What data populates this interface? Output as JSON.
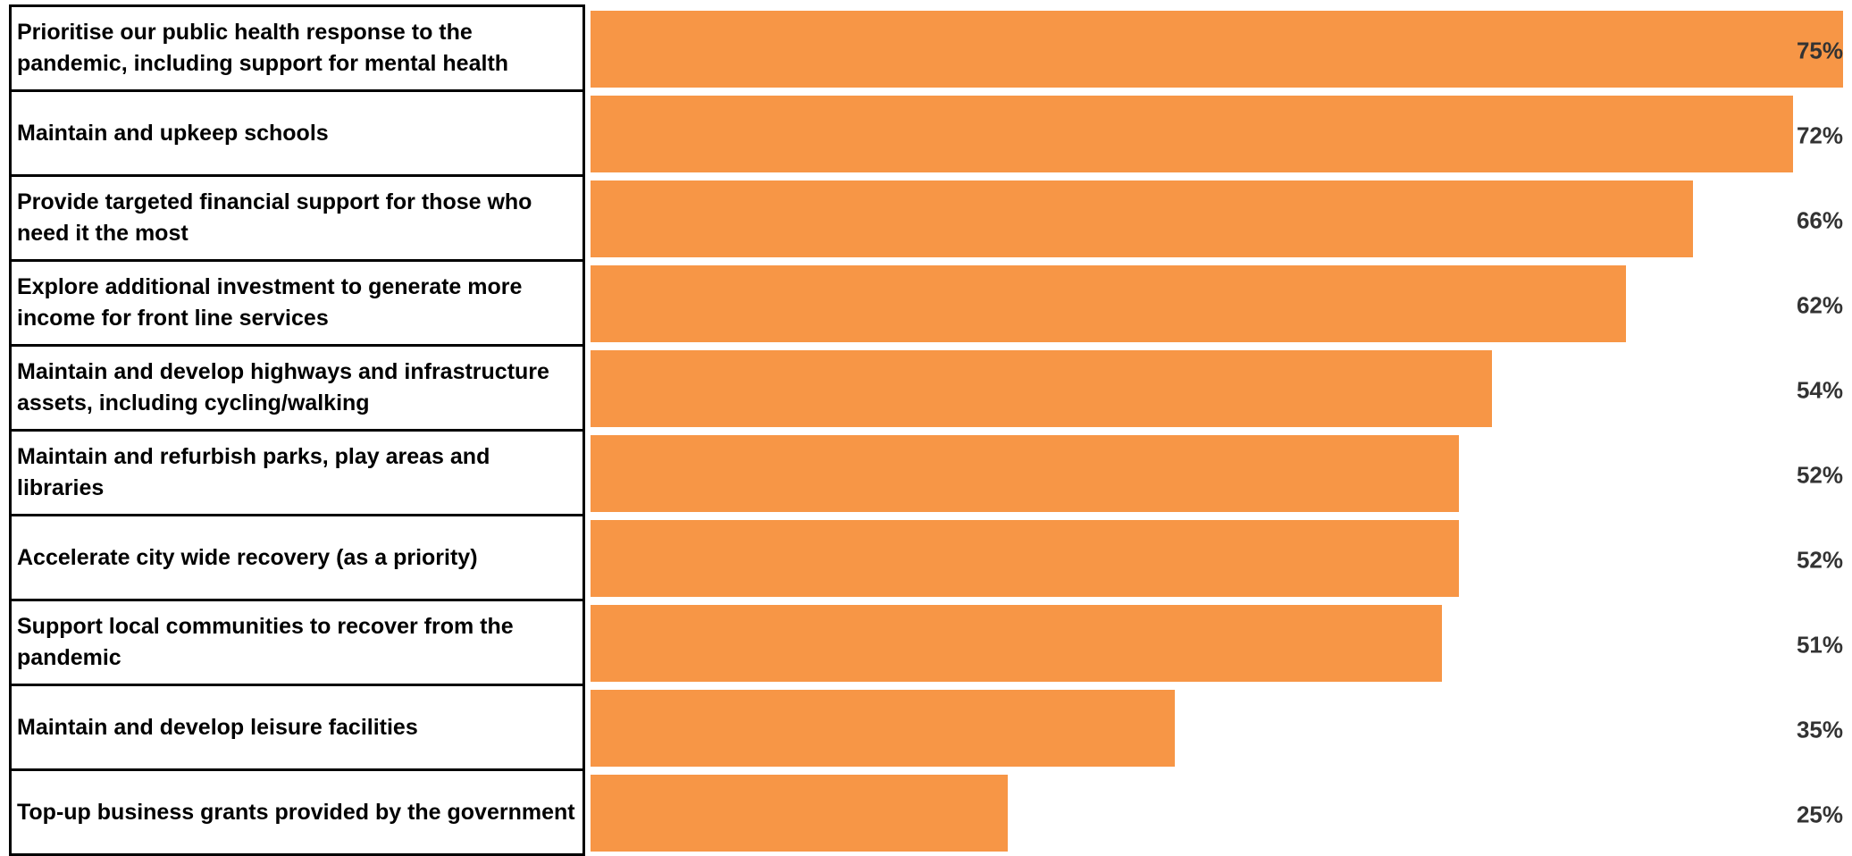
{
  "chart_data": {
    "type": "bar",
    "orientation": "horizontal",
    "categories": [
      "Prioritise our public health response to the pandemic, including support for mental health",
      "Maintain and upkeep schools",
      "Provide targeted financial support for those who need it the most",
      "Explore additional investment to generate more income for front line services",
      "Maintain and develop highways and infrastructure assets, including cycling/walking",
      "Maintain and refurbish parks, play areas and libraries",
      "Accelerate city wide recovery (as a priority)",
      "Support local communities to recover from the pandemic",
      "Maintain and develop leisure facilities",
      "Top-up business grants provided by the government"
    ],
    "values": [
      75,
      72,
      66,
      62,
      54,
      52,
      52,
      51,
      35,
      25
    ],
    "value_labels": [
      "75%",
      "72%",
      "66%",
      "62%",
      "54%",
      "52%",
      "52%",
      "51%",
      "35%",
      "25%"
    ],
    "color": "#f79646"
  }
}
